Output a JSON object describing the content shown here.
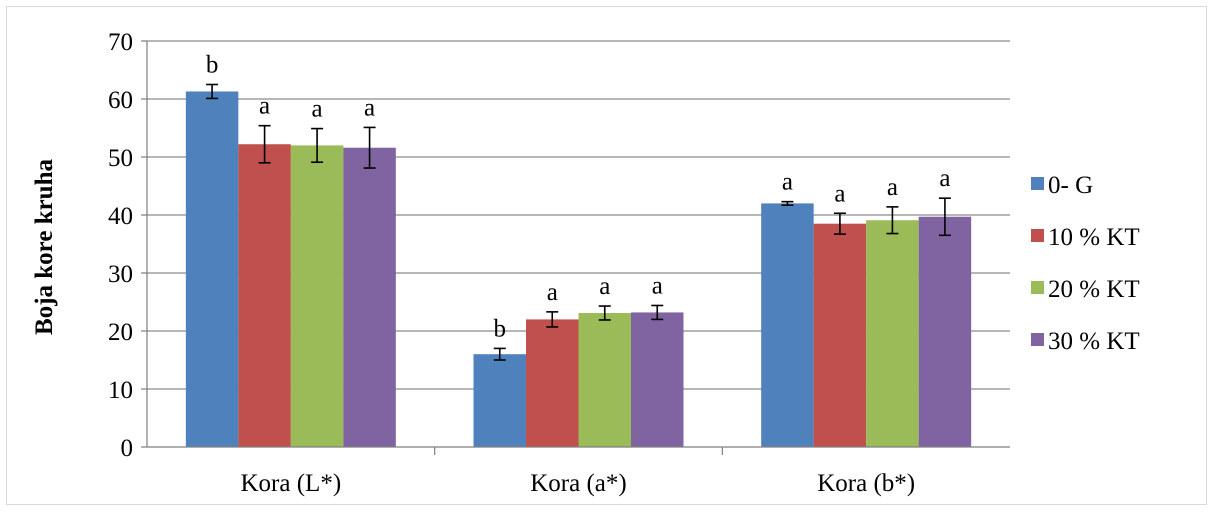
{
  "chart_data": {
    "type": "bar",
    "title": "",
    "xlabel": "",
    "ylabel": "Boja kore kruha",
    "ylim": [
      0,
      70
    ],
    "yticks": [
      0,
      10,
      20,
      30,
      40,
      50,
      60,
      70
    ],
    "grid": true,
    "legend_position": "right",
    "categories": [
      "Kora (L*)",
      "Kora (a*)",
      "Kora (b*)"
    ],
    "series": [
      {
        "name": "0- G",
        "color": "#4f81bd",
        "values": [
          61.3,
          16.0,
          42.0
        ],
        "errors": [
          1.2,
          1.0,
          0.3
        ],
        "labels": [
          "b",
          "b",
          "a"
        ]
      },
      {
        "name": "10 % KT",
        "color": "#c0504d",
        "values": [
          52.2,
          22.0,
          38.5
        ],
        "errors": [
          3.2,
          1.3,
          1.8
        ],
        "labels": [
          "a",
          "a",
          "a"
        ]
      },
      {
        "name": "20 % KT",
        "color": "#9bbb59",
        "values": [
          52.0,
          23.1,
          39.1
        ],
        "errors": [
          2.9,
          1.2,
          2.3
        ],
        "labels": [
          "a",
          "a",
          "a"
        ]
      },
      {
        "name": "30 % KT",
        "color": "#8064a2",
        "values": [
          51.6,
          23.2,
          39.7
        ],
        "errors": [
          3.5,
          1.2,
          3.2
        ],
        "labels": [
          "a",
          "a",
          "a"
        ]
      }
    ]
  }
}
